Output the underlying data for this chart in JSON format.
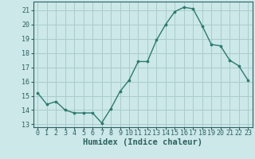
{
  "x": [
    0,
    1,
    2,
    3,
    4,
    5,
    6,
    7,
    8,
    9,
    10,
    11,
    12,
    13,
    14,
    15,
    16,
    17,
    18,
    19,
    20,
    21,
    22,
    23
  ],
  "y": [
    15.2,
    14.4,
    14.6,
    14.0,
    13.8,
    13.8,
    13.8,
    13.1,
    14.1,
    15.3,
    16.1,
    17.4,
    17.4,
    18.9,
    20.0,
    20.9,
    21.2,
    21.1,
    19.9,
    18.6,
    18.5,
    17.5,
    17.1,
    16.1
  ],
  "line_color": "#2d7a6e",
  "marker": "o",
  "marker_size": 2.2,
  "line_width": 1.0,
  "bg_color": "#cce8e8",
  "grid_color": "#aacccc",
  "xlabel": "Humidex (Indice chaleur)",
  "ylim": [
    12.8,
    21.6
  ],
  "xlim": [
    -0.5,
    23.5
  ],
  "yticks": [
    13,
    14,
    15,
    16,
    17,
    18,
    19,
    20,
    21
  ],
  "xtick_labels": [
    "0",
    "1",
    "2",
    "3",
    "4",
    "5",
    "6",
    "7",
    "8",
    "9",
    "10",
    "11",
    "12",
    "13",
    "14",
    "15",
    "16",
    "17",
    "18",
    "19",
    "20",
    "21",
    "22",
    "23"
  ],
  "tick_fontsize": 6.0,
  "xlabel_fontsize": 7.5,
  "tick_color": "#2d6060"
}
